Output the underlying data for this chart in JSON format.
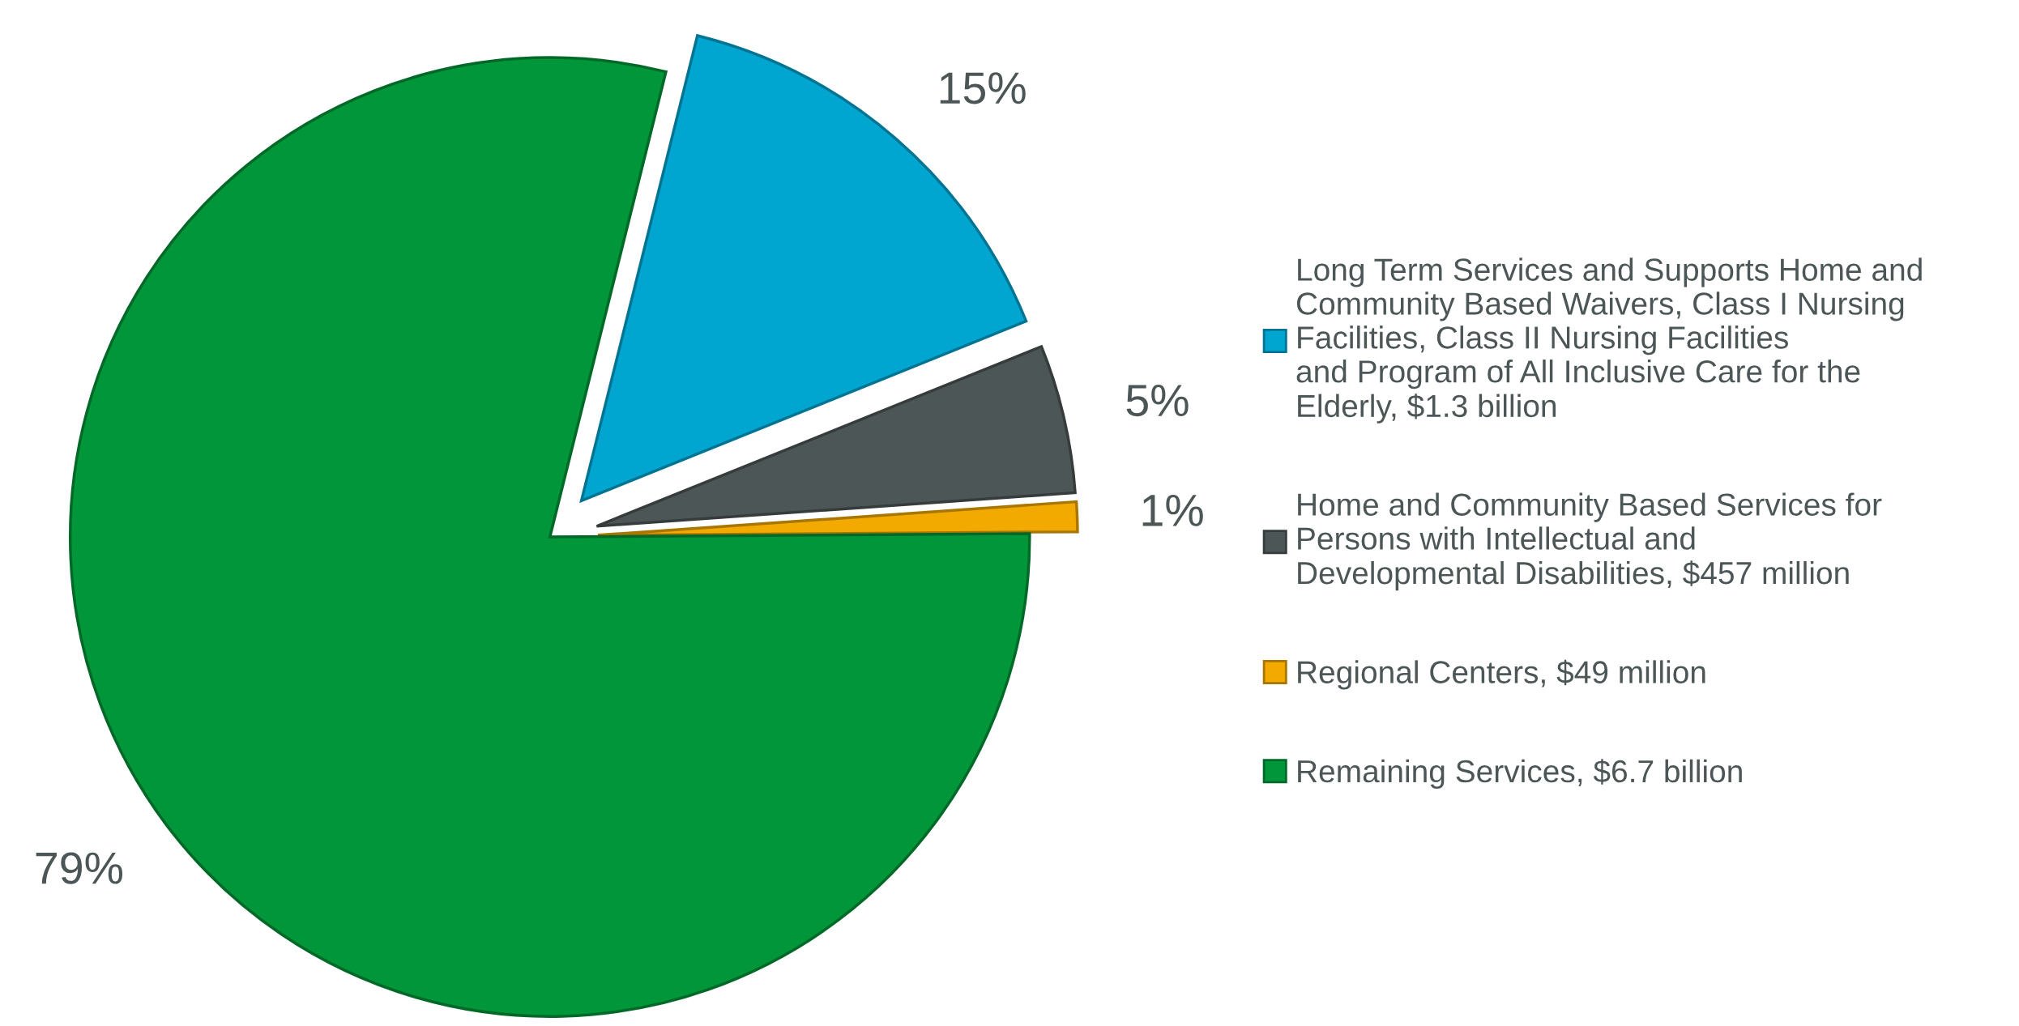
{
  "chart_data": {
    "type": "pie",
    "categories": [
      "Long Term Services and Supports Home and Community Based Waivers, Class I Nursing Facilities, Class II Nursing Facilities and Program of All Inclusive Care for the Elderly, $1.3 billion",
      "Home and Community Based Services for Persons with Intellectual and Developmental Disabilities, $457 million",
      "Regional Centers, $49 million",
      "Remaining Services, $6.7 billion"
    ],
    "values": [
      15,
      5,
      1,
      79
    ],
    "value_labels": [
      "15%",
      "5%",
      "1%",
      "79%"
    ],
    "colors": [
      "#00a6d0",
      "#4d5656",
      "#f2a900",
      "#009639"
    ],
    "legend": "right"
  }
}
